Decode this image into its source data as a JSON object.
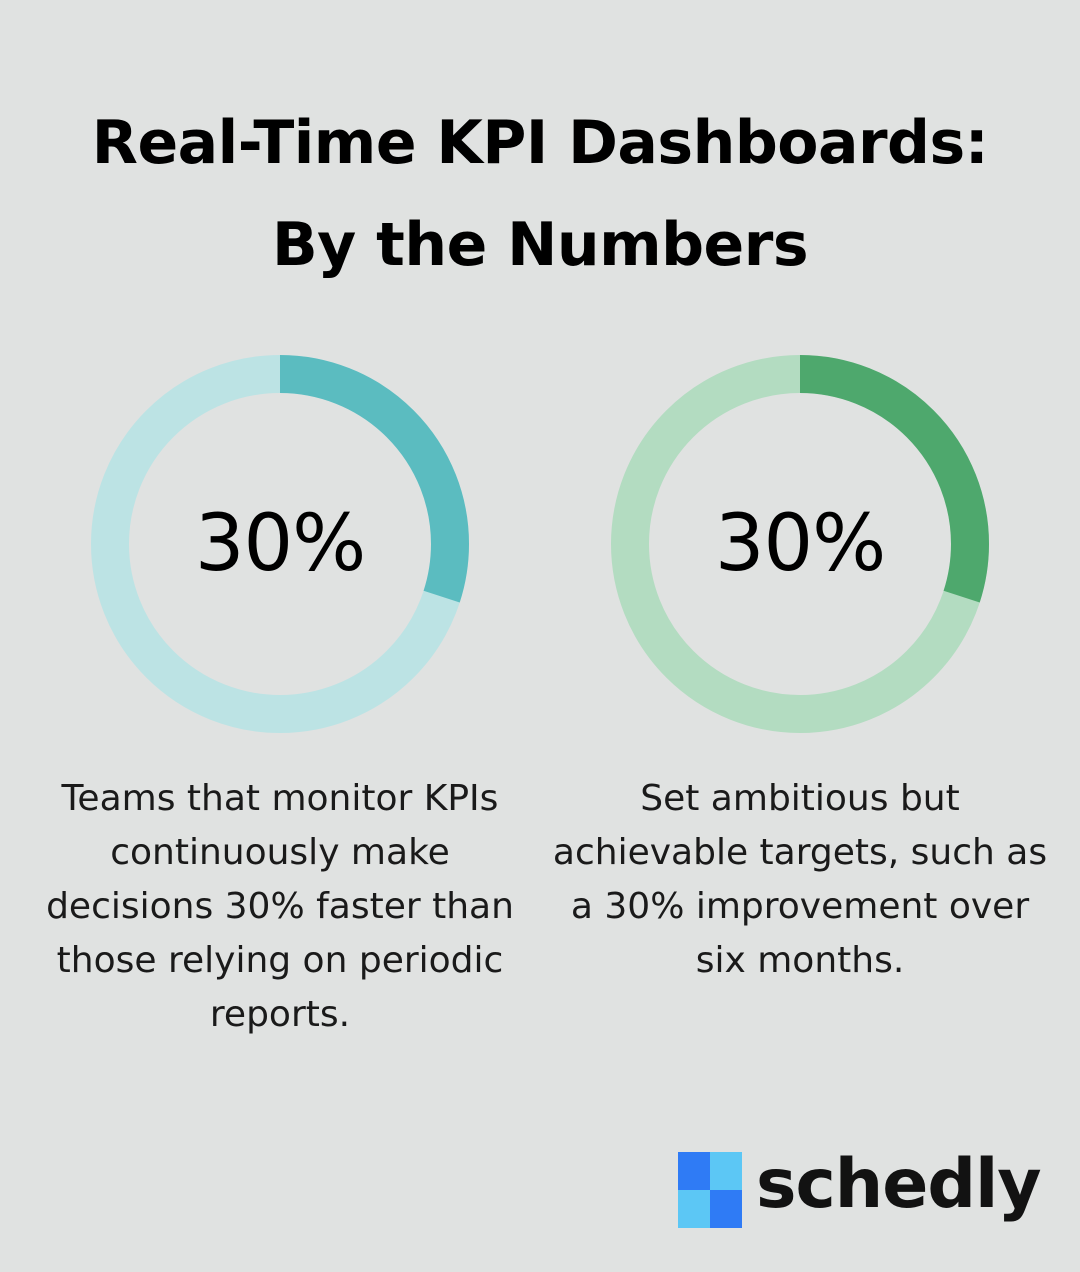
{
  "title": {
    "line1": "Real-Time KPI Dashboards:",
    "line2": "By the Numbers"
  },
  "chart_data": [
    {
      "type": "pie",
      "value": 30,
      "max": 100,
      "label": "30%",
      "caption": "Teams that monitor KPIs continuously make decisions 30% faster than those relying on periodic reports.",
      "colors": {
        "fill": "#5bbcc0",
        "track": "#bce3e4"
      }
    },
    {
      "type": "pie",
      "value": 30,
      "max": 100,
      "label": "30%",
      "caption": "Set ambitious but achievable targets, such as a 30% improvement over six months.",
      "colors": {
        "fill": "#4ea86d",
        "track": "#b3dcc1"
      }
    }
  ],
  "logo": {
    "text": "schedly",
    "colors": [
      "#2f7bf5",
      "#5cc7f5",
      "#5cc7f5",
      "#2f7bf5"
    ]
  }
}
